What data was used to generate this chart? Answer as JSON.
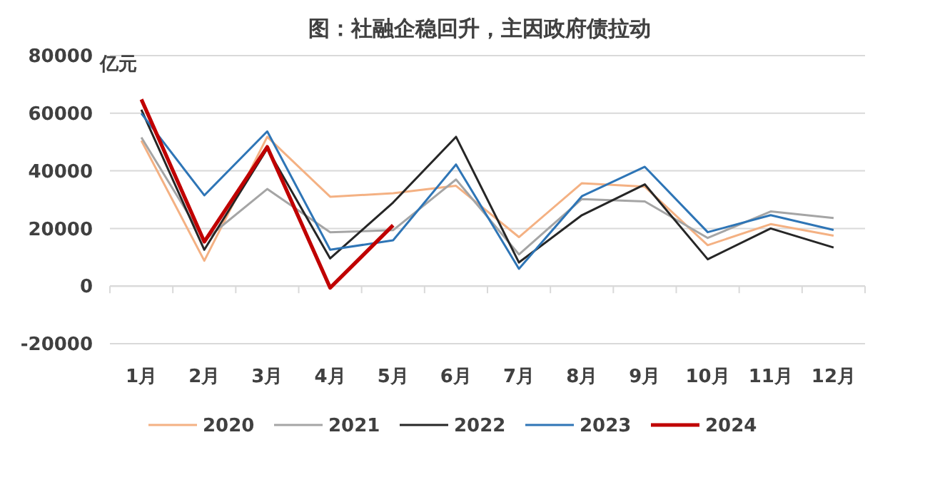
{
  "chart_data": {
    "type": "line",
    "title": "图：社融企稳回升，主因政府债拉动",
    "ylabel": "亿元",
    "categories": [
      "1月",
      "2月",
      "3月",
      "4月",
      "5月",
      "6月",
      "7月",
      "8月",
      "9月",
      "10月",
      "11月",
      "12月"
    ],
    "ylim": [
      -20000,
      80000
    ],
    "yticks": [
      -20000,
      0,
      20000,
      40000,
      60000,
      80000
    ],
    "grid": "y",
    "legend": "bottom",
    "marker": "none",
    "series": [
      {
        "name": "2020",
        "color": "#f4b183",
        "values": [
          50500,
          8800,
          51800,
          31000,
          32200,
          34800,
          17000,
          35700,
          34500,
          14200,
          21500,
          17500
        ]
      },
      {
        "name": "2021",
        "color": "#a5a5a5",
        "values": [
          51600,
          15900,
          33700,
          18700,
          19400,
          37000,
          11000,
          30200,
          29400,
          16700,
          25900,
          23600
        ]
      },
      {
        "name": "2022",
        "color": "#262626",
        "values": [
          61200,
          12600,
          47700,
          9600,
          29000,
          51800,
          8200,
          24600,
          35300,
          9300,
          20000,
          13400
        ]
      },
      {
        "name": "2023",
        "color": "#2e75b6",
        "values": [
          59900,
          31500,
          53700,
          12600,
          15900,
          42200,
          6000,
          31200,
          41400,
          18700,
          24600,
          19500
        ]
      },
      {
        "name": "2024",
        "color": "#c00000",
        "values": [
          64800,
          15400,
          48300,
          -600,
          21100,
          null,
          null,
          null,
          null,
          null,
          null,
          null
        ]
      }
    ]
  }
}
